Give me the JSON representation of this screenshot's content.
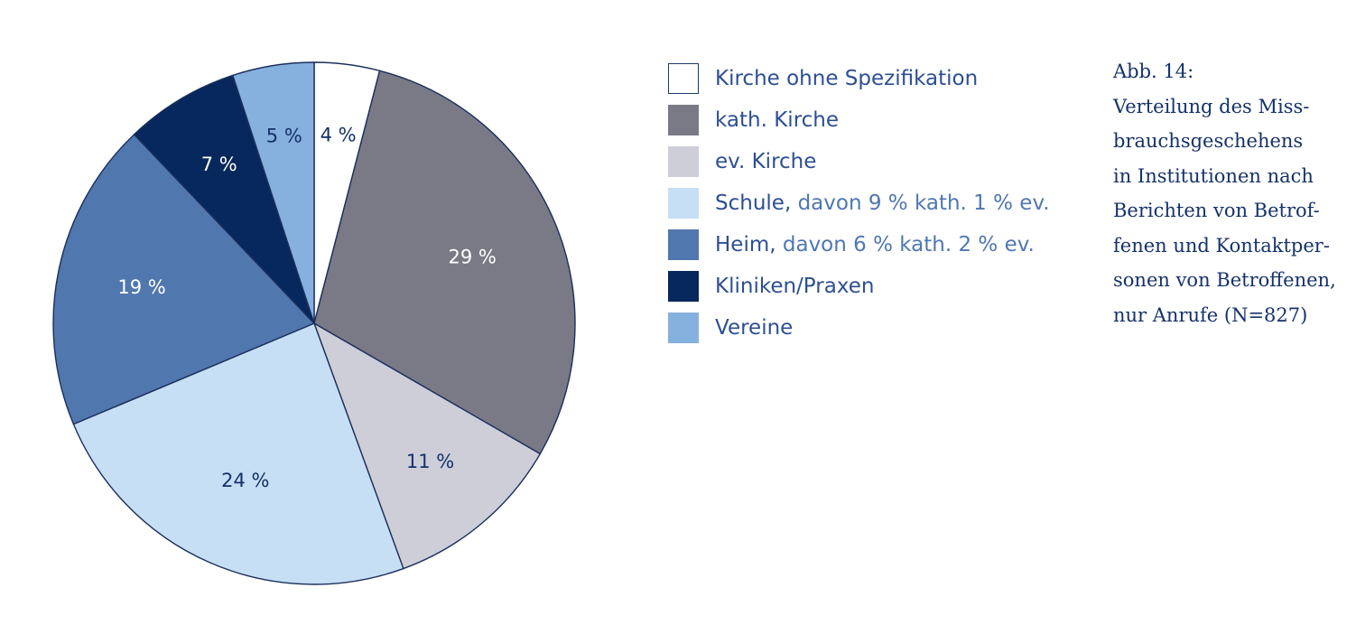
{
  "chart_data": {
    "type": "pie",
    "categories": [
      "Kirche ohne Spezifikation",
      "kath. Kirche",
      "ev. Kirche",
      "Schule",
      "Heim",
      "Kliniken/Praxen",
      "Vereine"
    ],
    "values": [
      4,
      29,
      11,
      24,
      19,
      7,
      5
    ],
    "value_labels": [
      "4 %",
      "29 %",
      "11 %",
      "24 %",
      "19 %",
      "7 %",
      "5 %"
    ],
    "start": "top (12 o'clock)",
    "direction": "clockwise",
    "legend_position": "right",
    "colors": [
      "#ffffff",
      "#7a7a86",
      "#cdced8",
      "#c7dff4",
      "#5077ae",
      "#06285c",
      "#86b0de"
    ],
    "label_colors": [
      "#15326a",
      "#ffffff",
      "#15326a",
      "#15326a",
      "#ffffff",
      "#ffffff",
      "#15326a"
    ]
  },
  "legend": {
    "items": [
      {
        "label": "Kirche ohne Spezifikation",
        "detail": "",
        "color": "#ffffff",
        "outlined": true
      },
      {
        "label": "kath. Kirche",
        "detail": "",
        "color": "#7a7a86",
        "outlined": false
      },
      {
        "label": "ev. Kirche",
        "detail": "",
        "color": "#cdced8",
        "outlined": false
      },
      {
        "label": "Schule,",
        "detail": " davon 9 % kath. 1 % ev.",
        "color": "#c7dff4",
        "outlined": false
      },
      {
        "label": "Heim,",
        "detail": " davon 6 % kath. 2 % ev.",
        "color": "#5077ae",
        "outlined": false
      },
      {
        "label": "Kliniken/Praxen",
        "detail": "",
        "color": "#06285c",
        "outlined": false
      },
      {
        "label": "Vereine",
        "detail": "",
        "color": "#86b0de",
        "outlined": false
      }
    ]
  },
  "caption": {
    "lines": [
      "Abb. 14:",
      "Verteilung des Miss-",
      "brauchsgeschehens",
      "in Institutionen nach",
      "Berichten von Betrof-",
      "fenen und Kontaktper-",
      "sonen von Betroffenen,",
      "nur Anrufe (N=827)"
    ]
  }
}
